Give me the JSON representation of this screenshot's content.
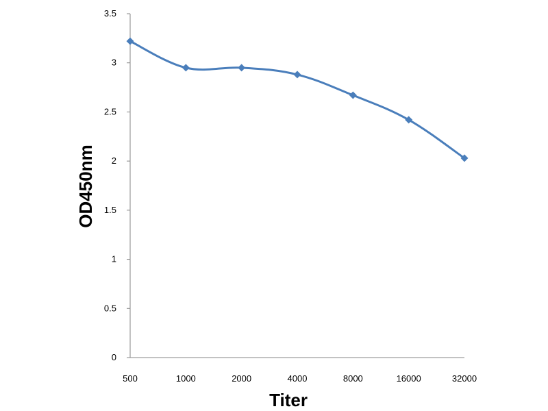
{
  "chart_data": {
    "type": "line",
    "title": "",
    "xlabel": "Titer",
    "ylabel": "OD450nm",
    "categories": [
      "500",
      "1000",
      "2000",
      "4000",
      "8000",
      "16000",
      "32000"
    ],
    "series": [
      {
        "values": [
          3.22,
          2.95,
          2.95,
          2.88,
          2.67,
          2.42,
          2.03
        ],
        "color": "#4a7ebb",
        "marker": "diamond",
        "smooth": true
      }
    ],
    "ylim": [
      0,
      3.5
    ],
    "yticks": [
      "0",
      "0.5",
      "1",
      "1.5",
      "2",
      "2.5",
      "3",
      "3.5"
    ],
    "grid": false,
    "legend": "none"
  }
}
